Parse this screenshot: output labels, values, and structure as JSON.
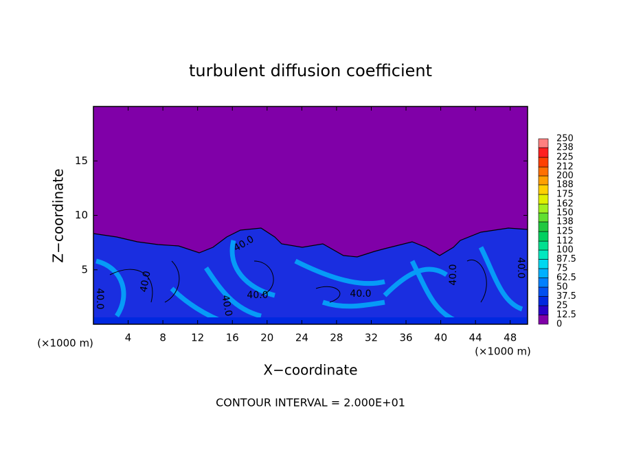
{
  "chart_data": {
    "type": "contour",
    "title": "turbulent diffusion coefficient",
    "xlabel": "X−coordinate",
    "ylabel": "Z−coordinate",
    "x_unit_label": "(×1000 m)",
    "footer": "CONTOUR INTERVAL = 2.000E+01",
    "xlim": [
      0,
      50
    ],
    "xticks": [
      4,
      8,
      12,
      16,
      20,
      24,
      28,
      32,
      36,
      40,
      44,
      48
    ],
    "ylim": [
      0,
      20
    ],
    "yticks": [
      5,
      10,
      15
    ],
    "contour_labels": [
      "40.0",
      "40.0",
      "40.0",
      "40.0",
      "40.0",
      "40.0",
      "40.0",
      "40.0"
    ],
    "colorbar": {
      "levels": [
        0,
        12.5,
        25,
        37.5,
        50,
        62.5,
        75,
        87.5,
        100,
        112,
        125,
        138,
        150,
        162,
        175,
        188,
        200,
        212,
        225,
        238,
        250
      ],
      "colors": [
        "#8000a8",
        "#2800c8",
        "#0028e0",
        "#0050f0",
        "#0080ff",
        "#00b0ff",
        "#00d8f0",
        "#00e8c0",
        "#00e090",
        "#00d060",
        "#20c840",
        "#60e030",
        "#a0f020",
        "#e0f000",
        "#ffd000",
        "#ffa000",
        "#ff7000",
        "#ff4000",
        "#ff2020",
        "#ff8080"
      ]
    }
  }
}
